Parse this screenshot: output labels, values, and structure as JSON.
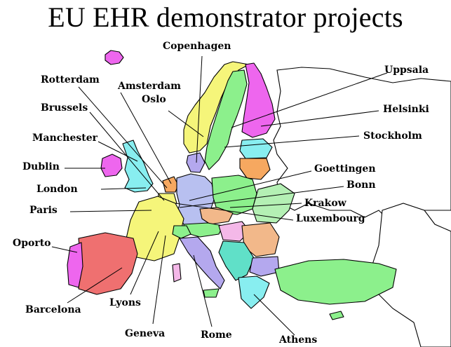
{
  "title": "EU EHR demonstrator projects",
  "colors": {
    "magenta": "#ee66ee",
    "yellow": "#f5f57a",
    "green": "#8cf08c",
    "cyan": "#88eef0",
    "lavender": "#b4a8ee",
    "orange": "#f6a860",
    "salmon": "#ef7070",
    "light_orange": "#f2b88a",
    "blue_gray": "#b8c0f0",
    "light_green": "#b4f0b4",
    "pink": "#f4b8e8",
    "teal": "#60e0c8"
  },
  "cities": {
    "copenhagen": "Copenhagen",
    "rotterdam": "Rotterdam",
    "amsterdam": "Amsterdam",
    "oslo": "Oslo",
    "uppsala": "Uppsala",
    "brussels": "Brussels",
    "helsinki": "Helsinki",
    "manchester": "Manchester",
    "stockholm": "Stockholm",
    "dublin": "Dublin",
    "goettingen": "Goettingen",
    "bonn": "Bonn",
    "london": "London",
    "krakow": "Krakow",
    "paris": "Paris",
    "luxembourg": "Luxembourg",
    "oporto": "Oporto",
    "lyons": "Lyons",
    "barcelona": "Barcelona",
    "geneva": "Geneva",
    "rome": "Rome",
    "athens": "Athens"
  }
}
